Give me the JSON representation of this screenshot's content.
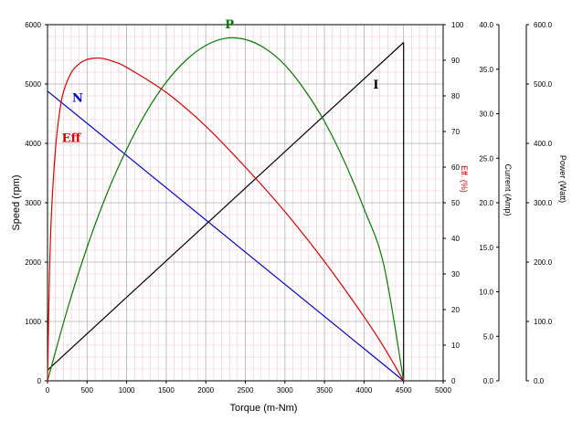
{
  "chart_data": {
    "type": "line",
    "xlabel": "Torque (m-Nm)",
    "x_ticks": [
      "0",
      "500",
      "1000",
      "1500",
      "2000",
      "2500",
      "3000",
      "3500",
      "4000",
      "4500",
      "5000"
    ],
    "xlim": [
      0,
      5000
    ],
    "axes": {
      "speed": {
        "label": "Speed (rpm)",
        "ylim": [
          0,
          6000
        ],
        "ticks": [
          "0",
          "1000",
          "2000",
          "3000",
          "4000",
          "5000",
          "6000"
        ]
      },
      "eff": {
        "label": "Eff. (%)",
        "ylim": [
          0,
          100
        ],
        "ticks": [
          "0",
          "10",
          "20",
          "30",
          "40",
          "50",
          "60",
          "70",
          "80",
          "90",
          "100"
        ]
      },
      "current": {
        "label": "Current (Amp)",
        "ylim": [
          0,
          40
        ],
        "ticks": [
          "0.0",
          "5.0",
          "10.0",
          "15.0",
          "20.0",
          "25.0",
          "30.0",
          "35.0",
          "40.0"
        ]
      },
      "power": {
        "label": "Power (Watt)",
        "ylim": [
          0,
          600
        ],
        "ticks": [
          "0.0",
          "100.0",
          "200.0",
          "300.0",
          "400.0",
          "500.0",
          "600.0"
        ]
      }
    },
    "series": [
      {
        "name": "N",
        "axis": "speed",
        "color": "#0000cc",
        "x": [
          0,
          4500
        ],
        "y": [
          4880,
          0
        ]
      },
      {
        "name": "I",
        "axis": "current",
        "color": "#000000",
        "x": [
          0,
          4500
        ],
        "y": [
          1.2,
          38
        ]
      },
      {
        "name": "P",
        "axis": "power",
        "color": "#008000",
        "x": [
          0,
          250,
          500,
          750,
          1000,
          1250,
          1500,
          1750,
          2000,
          2250,
          2500,
          2750,
          3000,
          3250,
          3500,
          3750,
          4000,
          4250,
          4500
        ],
        "y": [
          0,
          120,
          225,
          315,
          390,
          453,
          503,
          540,
          565,
          577,
          575,
          560,
          532,
          490,
          437,
          370,
          290,
          195,
          0
        ]
      },
      {
        "name": "Eff",
        "axis": "eff",
        "color": "#dd0000",
        "x": [
          0,
          25,
          50,
          100,
          150,
          200,
          300,
          400,
          500,
          600,
          700,
          850,
          1000,
          1500,
          2000,
          2500,
          3000,
          3500,
          4000,
          4250,
          4500
        ],
        "y": [
          0,
          30,
          47,
          65,
          75,
          81,
          86.5,
          89,
          90.2,
          90.6,
          90.5,
          89.5,
          88,
          81,
          71.5,
          60,
          47.5,
          33.5,
          18,
          9.5,
          0
        ]
      }
    ],
    "grid": true,
    "end_line": {
      "x": 4500,
      "color": "#000000"
    }
  }
}
